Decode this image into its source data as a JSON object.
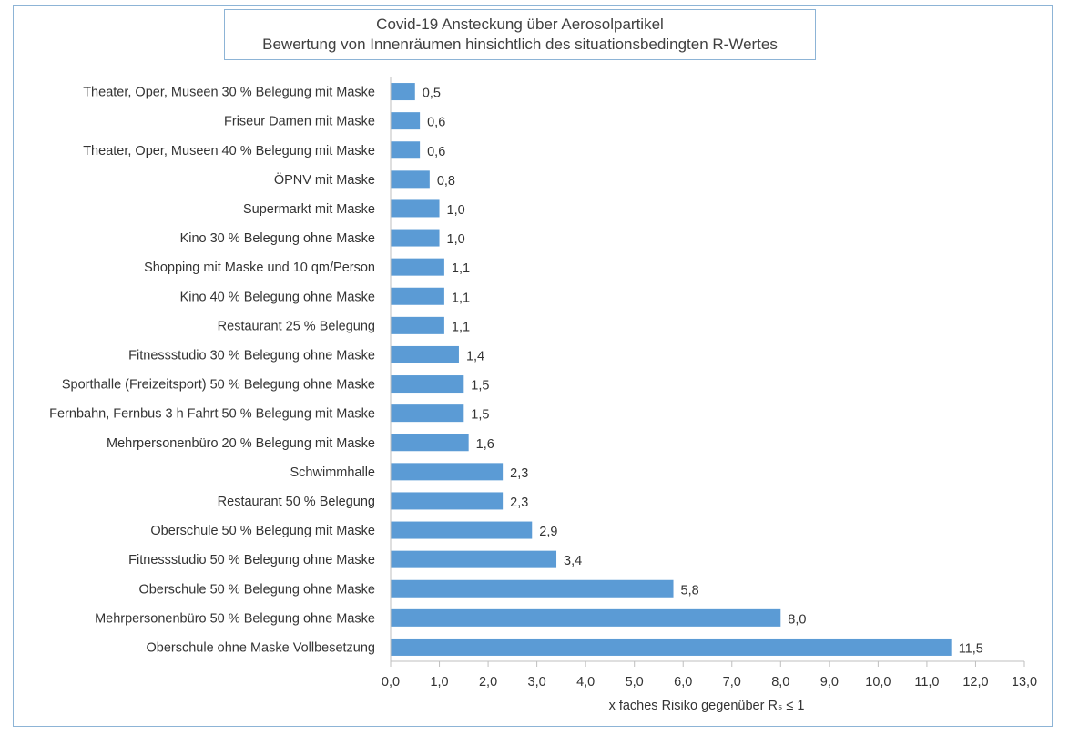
{
  "chart_data": {
    "type": "bar",
    "orientation": "horizontal",
    "title": "Covid-19 Ansteckung über Aerosolpartikel",
    "subtitle": "Bewertung von Innenräumen hinsichtlich des situationsbedingten R-Wertes",
    "xlabel": "x faches Risiko gegenüber Rₛ ≤ 1",
    "ylabel": "",
    "xlim": [
      0,
      13
    ],
    "xticks": [
      "0,0",
      "1,0",
      "2,0",
      "3,0",
      "4,0",
      "5,0",
      "6,0",
      "7,0",
      "8,0",
      "9,0",
      "10,0",
      "11,0",
      "12,0",
      "13,0"
    ],
    "categories": [
      "Theater, Oper, Museen 30 % Belegung mit Maske",
      "Friseur Damen mit Maske",
      "Theater, Oper, Museen 40 % Belegung mit Maske",
      "ÖPNV mit Maske",
      "Supermarkt mit Maske",
      "Kino 30 % Belegung ohne Maske",
      "Shopping mit Maske und 10 qm/Person",
      "Kino 40 % Belegung ohne Maske",
      "Restaurant 25 % Belegung",
      "Fitnessstudio 30 % Belegung ohne Maske",
      "Sporthalle  (Freizeitsport) 50 % Belegung ohne Maske",
      "Fernbahn, Fernbus 3 h Fahrt 50 % Belegung mit Maske",
      "Mehrpersonenbüro 20 % Belegung mit Maske",
      "Schwimmhalle",
      "Restaurant 50 % Belegung",
      "Oberschule 50 % Belegung mit Maske",
      "Fitnessstudio 50 % Belegung ohne Maske",
      "Oberschule 50 % Belegung ohne Maske",
      "Mehrpersonenbüro 50 % Belegung ohne Maske",
      "Oberschule ohne Maske Vollbesetzung"
    ],
    "values": [
      0.5,
      0.6,
      0.6,
      0.8,
      1.0,
      1.0,
      1.1,
      1.1,
      1.1,
      1.4,
      1.5,
      1.5,
      1.6,
      2.3,
      2.3,
      2.9,
      3.4,
      5.8,
      8.0,
      11.5
    ],
    "value_labels": [
      "0,5",
      "0,6",
      "0,6",
      "0,8",
      "1,0",
      "1,0",
      "1,1",
      "1,1",
      "1,1",
      "1,4",
      "1,5",
      "1,5",
      "1,6",
      "2,3",
      "2,3",
      "2,9",
      "3,4",
      "5,8",
      "8,0",
      "11,5"
    ],
    "bar_color": "#5b9bd5",
    "grid": false,
    "legend": "none"
  }
}
